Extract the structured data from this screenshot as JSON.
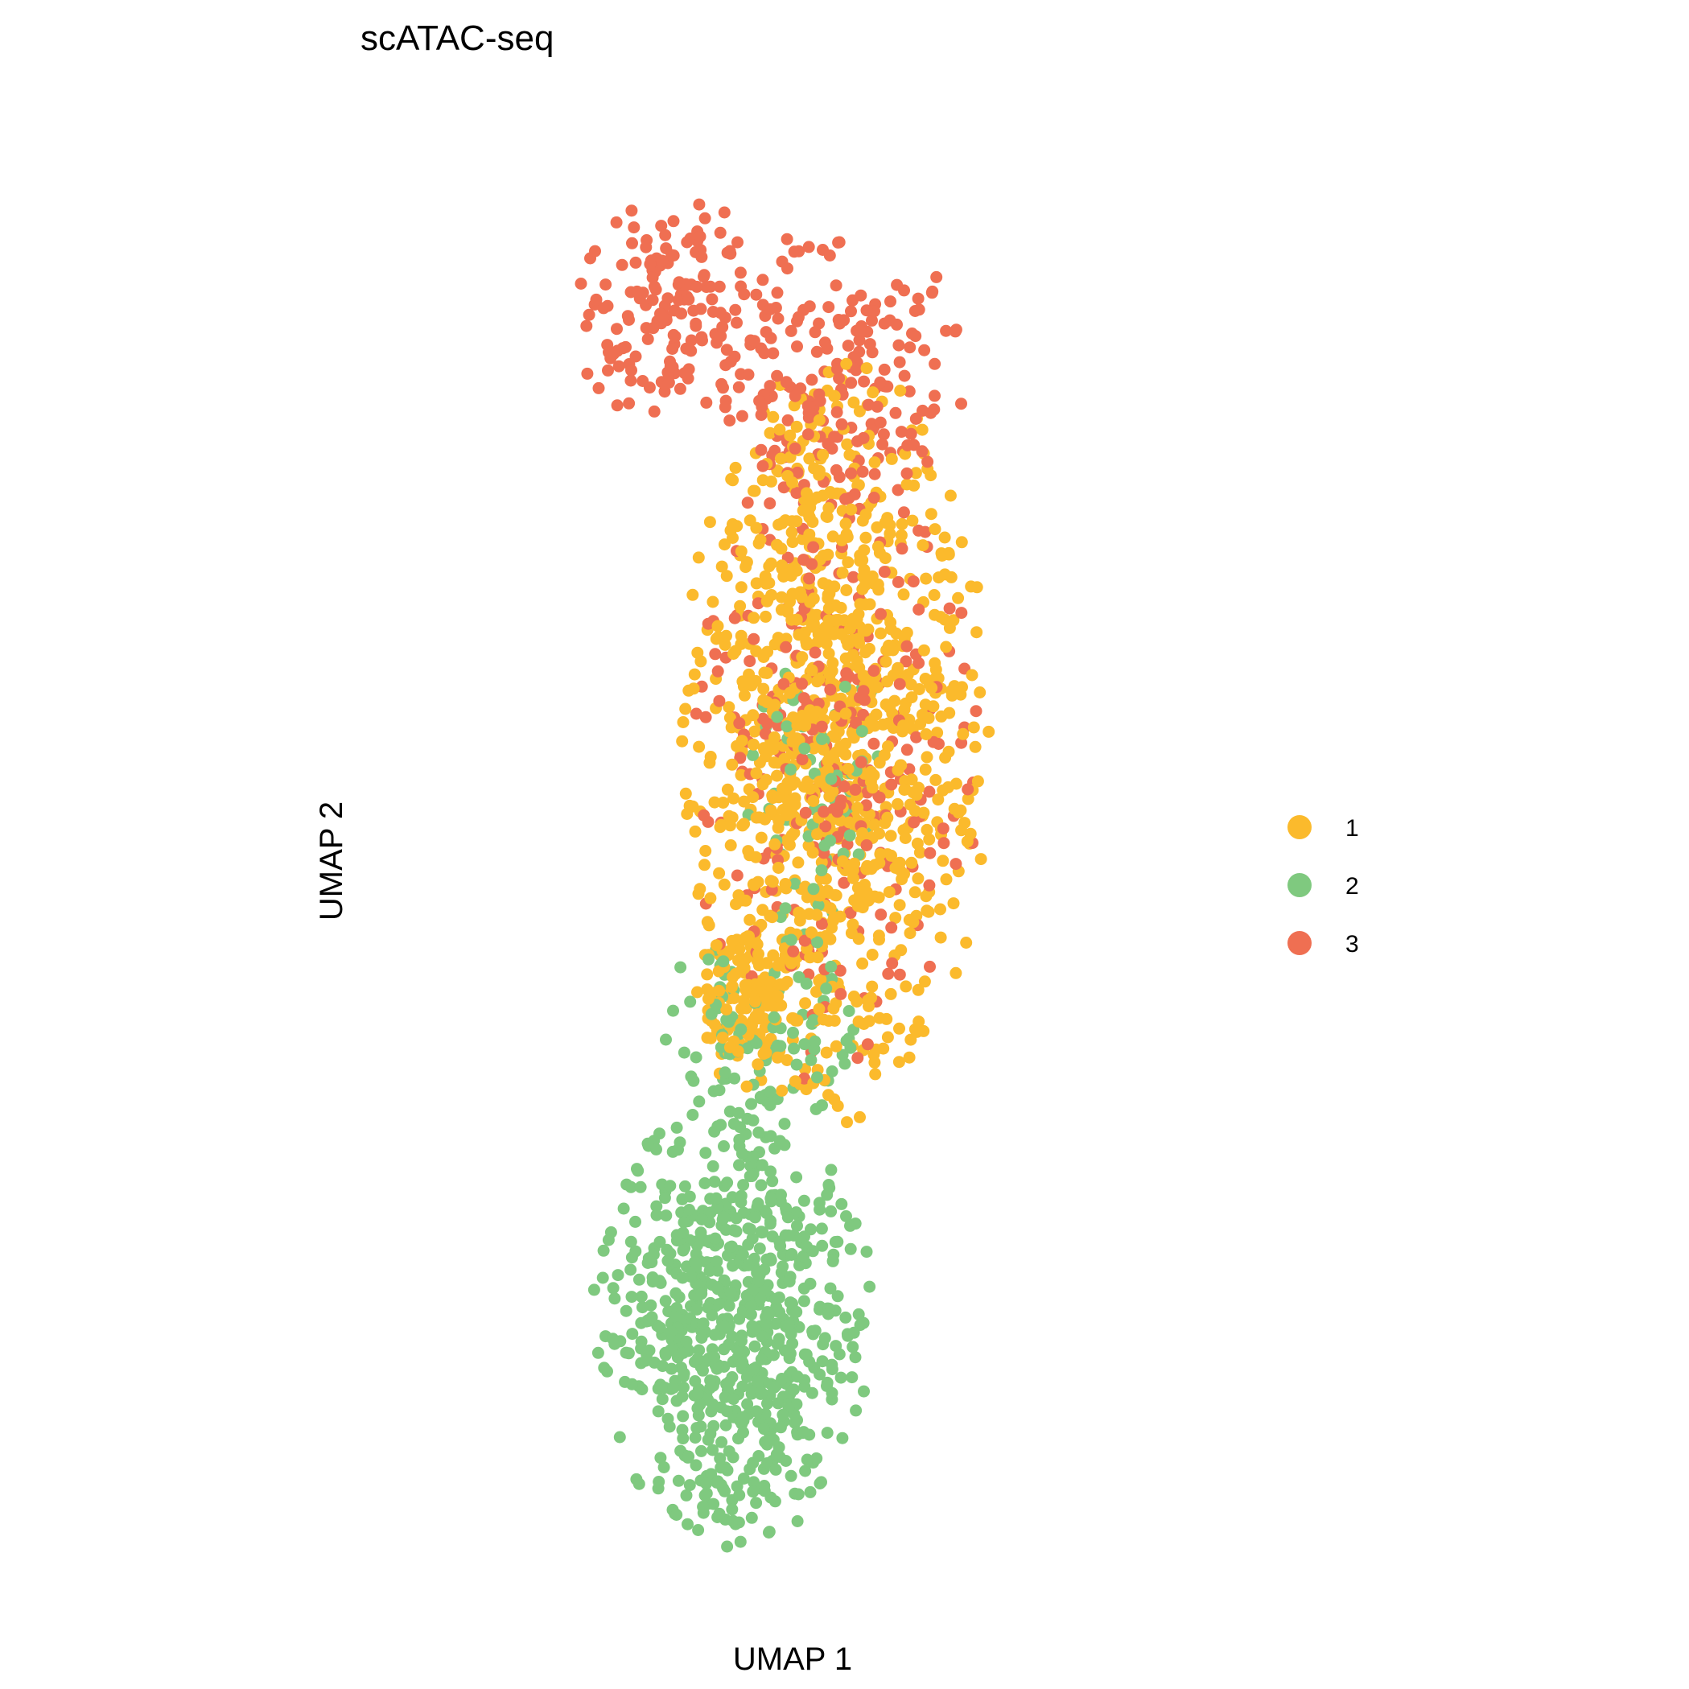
{
  "chart_data": {
    "type": "scatter",
    "title": "scATAC-seq",
    "xlabel": "UMAP 1",
    "ylabel": "UMAP 2",
    "xlim": [
      0,
      100
    ],
    "ylim": [
      0,
      100
    ],
    "grid": false,
    "legend_position": "right",
    "series": [
      {
        "name": "1",
        "color": "#FBBA2C",
        "seed": 11,
        "points": 1150,
        "regions": [
          {
            "cx": 52,
            "cy": 58,
            "rx": 21,
            "ry": 27,
            "weight": 0.9
          },
          {
            "cx": 40,
            "cy": 40,
            "rx": 7,
            "ry": 6,
            "weight": 0.1
          }
        ]
      },
      {
        "name": "2",
        "color": "#7FC97F",
        "seed": 23,
        "points": 900,
        "regions": [
          {
            "cx": 38,
            "cy": 18,
            "rx": 19,
            "ry": 16,
            "weight": 0.8
          },
          {
            "cx": 42,
            "cy": 38,
            "rx": 14,
            "ry": 8,
            "weight": 0.12
          },
          {
            "cx": 50,
            "cy": 55,
            "rx": 10,
            "ry": 10,
            "weight": 0.08
          }
        ]
      },
      {
        "name": "3",
        "color": "#EF6F52",
        "seed": 37,
        "points": 620,
        "regions": [
          {
            "cx": 30,
            "cy": 88,
            "rx": 14,
            "ry": 8,
            "weight": 0.22
          },
          {
            "cx": 52,
            "cy": 84,
            "rx": 18,
            "ry": 10,
            "weight": 0.3
          },
          {
            "cx": 52,
            "cy": 58,
            "rx": 20,
            "ry": 24,
            "weight": 0.48
          }
        ]
      }
    ]
  },
  "legend": {
    "items": [
      {
        "label": "1",
        "color": "#FBBA2C"
      },
      {
        "label": "2",
        "color": "#7FC97F"
      },
      {
        "label": "3",
        "color": "#EF6F52"
      }
    ]
  }
}
